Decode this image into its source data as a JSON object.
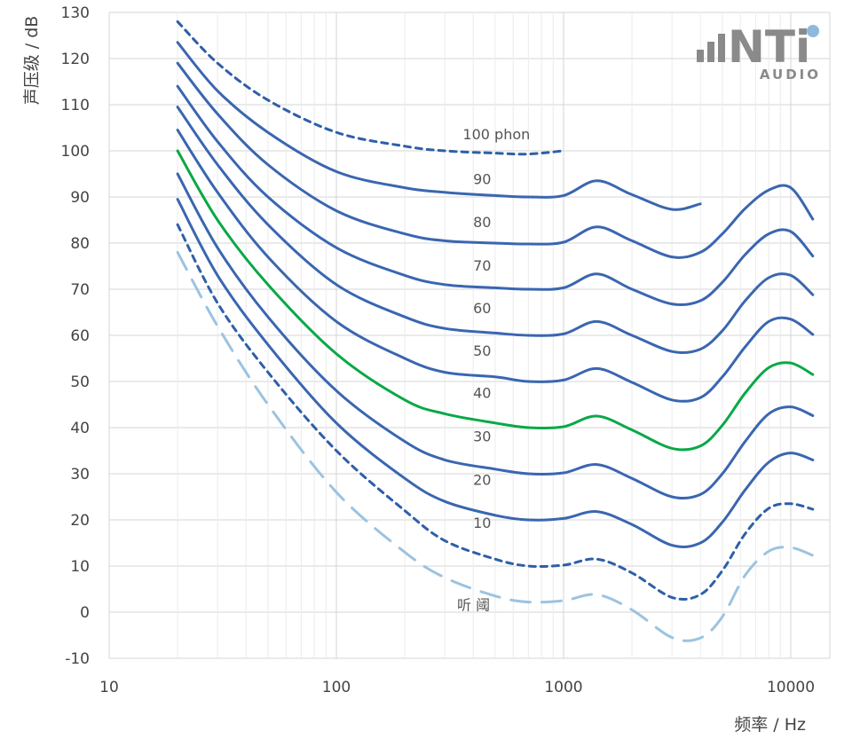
{
  "chart_data": {
    "type": "line",
    "xscale": "log",
    "xlim": [
      10,
      16000
    ],
    "ylim": [
      -10,
      130
    ],
    "grid": true,
    "xlabel": "频率 / Hz",
    "ylabel": "声压级 / dB",
    "x_ticks": [
      "10",
      "100",
      "1000",
      "10000"
    ],
    "y_ticks": [
      "130",
      "120",
      "110",
      "100",
      "90",
      "80",
      "70",
      "60",
      "50",
      "40",
      "30",
      "20",
      "10",
      "0",
      "-10"
    ],
    "series": [
      {
        "name": "听 阈",
        "color": "#9cc3e0",
        "style": "long-dash",
        "x": [
          20,
          30,
          50,
          100,
          200,
          300,
          500,
          700,
          1000,
          1400,
          2000,
          3000,
          4000,
          5000,
          6300,
          8000,
          10000,
          12500
        ],
        "y": [
          78,
          62,
          45,
          26,
          13,
          7.5,
          3.5,
          2.2,
          2.5,
          3.8,
          0.5,
          -5.5,
          -5.6,
          -1,
          8,
          13.2,
          14,
          12.3
        ]
      },
      {
        "name": "10",
        "color": "#2e5fa8",
        "style": "short-dash",
        "x": [
          20,
          30,
          50,
          100,
          200,
          300,
          500,
          700,
          1000,
          1400,
          2000,
          3000,
          4000,
          5000,
          6300,
          8000,
          10000,
          12500
        ],
        "y": [
          84,
          67,
          52,
          35,
          22,
          15.5,
          11.5,
          10,
          10.2,
          11.5,
          8.5,
          3.2,
          3.8,
          9,
          17,
          22.5,
          23.5,
          22.3
        ]
      },
      {
        "name": "20",
        "color": "#3a66b0",
        "style": "solid",
        "x": [
          20,
          30,
          50,
          100,
          200,
          300,
          500,
          700,
          1000,
          1400,
          2000,
          3000,
          4000,
          5000,
          6300,
          8000,
          10000,
          12500
        ],
        "y": [
          89.5,
          73,
          58,
          41,
          29,
          24,
          21,
          20,
          20.3,
          21.8,
          19,
          14.5,
          15,
          19.5,
          26.5,
          32.5,
          34.5,
          33
        ]
      },
      {
        "name": "30",
        "color": "#3a66b0",
        "style": "solid",
        "x": [
          20,
          30,
          50,
          100,
          200,
          300,
          500,
          700,
          1000,
          1400,
          2000,
          3000,
          4000,
          5000,
          6300,
          8000,
          10000,
          12500
        ],
        "y": [
          95,
          79,
          64,
          48,
          37,
          33,
          31,
          30,
          30.2,
          32,
          29,
          25,
          25.5,
          30,
          37,
          43,
          44.5,
          42.6
        ]
      },
      {
        "name": "40",
        "color": "#0aa847",
        "style": "solid",
        "x": [
          20,
          30,
          50,
          100,
          200,
          300,
          500,
          700,
          1000,
          1400,
          2000,
          3000,
          4000,
          5000,
          6300,
          8000,
          10000,
          12500
        ],
        "y": [
          100,
          85,
          71,
          56,
          46,
          43,
          41,
          40,
          40.2,
          42.5,
          39.5,
          35.5,
          36,
          40.5,
          47.5,
          53,
          54,
          51.5
        ]
      },
      {
        "name": "50",
        "color": "#3a66b0",
        "style": "solid",
        "x": [
          20,
          30,
          50,
          100,
          200,
          300,
          500,
          700,
          1000,
          1400,
          2000,
          3000,
          4000,
          5000,
          6300,
          8000,
          10000,
          12500
        ],
        "y": [
          104.5,
          91,
          77,
          63,
          55,
          52,
          51,
          50,
          50.3,
          52.8,
          49.8,
          46,
          46.5,
          51,
          57.5,
          63,
          63.5,
          60.2
        ]
      },
      {
        "name": "60",
        "color": "#3a66b0",
        "style": "solid",
        "x": [
          20,
          30,
          50,
          100,
          200,
          300,
          500,
          700,
          1000,
          1400,
          2000,
          3000,
          4000,
          5000,
          6300,
          8000,
          10000,
          12500
        ],
        "y": [
          109.5,
          97,
          84,
          71,
          64,
          61.5,
          60.5,
          60,
          60.3,
          63,
          60,
          56.5,
          57,
          61,
          67.5,
          72.5,
          73,
          68.8
        ]
      },
      {
        "name": "70",
        "color": "#3a66b0",
        "style": "solid",
        "x": [
          20,
          30,
          50,
          100,
          200,
          300,
          500,
          700,
          1000,
          1400,
          2000,
          3000,
          4000,
          5000,
          6300,
          8000,
          10000,
          12500
        ],
        "y": [
          114,
          102,
          90,
          79,
          73,
          71,
          70.3,
          70,
          70.3,
          73.3,
          70,
          66.8,
          67.5,
          71.5,
          77.5,
          82,
          82.5,
          77.2
        ]
      },
      {
        "name": "80",
        "color": "#3a66b0",
        "style": "solid",
        "x": [
          20,
          30,
          50,
          100,
          200,
          300,
          500,
          700,
          1000,
          1400,
          2000,
          3000,
          4000,
          5000,
          6300,
          8000,
          10000,
          12500
        ],
        "y": [
          119,
          108,
          97,
          87,
          82,
          80.5,
          80,
          79.8,
          80.2,
          83.5,
          80.5,
          77,
          78,
          82,
          87.5,
          91.5,
          92,
          85.2
        ]
      },
      {
        "name": "90",
        "color": "#3a66b0",
        "style": "solid",
        "x": [
          20,
          30,
          50,
          100,
          200,
          300,
          500,
          700,
          1000,
          1400,
          2000,
          3000,
          4000
        ],
        "y": [
          123.5,
          113,
          104,
          95.5,
          92,
          91,
          90.3,
          90,
          90.3,
          93.5,
          90.5,
          87.3,
          88.5
        ]
      },
      {
        "name": "100",
        "color": "#2e5fa8",
        "style": "short-dash",
        "x": [
          20,
          30,
          50,
          100,
          200,
          300,
          500,
          700,
          1000
        ],
        "y": [
          128,
          119,
          111,
          104,
          101,
          100,
          99.5,
          99.3,
          100
        ]
      }
    ],
    "curve_labels": [
      {
        "text": "100  phon",
        "x": 360,
        "y": 102.5
      },
      {
        "text": "90",
        "x": 400,
        "y": 92.8
      },
      {
        "text": "80",
        "x": 400,
        "y": 83.5
      },
      {
        "text": "70",
        "x": 400,
        "y": 74
      },
      {
        "text": "60",
        "x": 400,
        "y": 64.8
      },
      {
        "text": "50",
        "x": 400,
        "y": 55.6
      },
      {
        "text": "40",
        "x": 400,
        "y": 46.4
      },
      {
        "text": "30",
        "x": 400,
        "y": 37
      },
      {
        "text": "20",
        "x": 400,
        "y": 27.6
      },
      {
        "text": "10",
        "x": 400,
        "y": 18.3
      },
      {
        "text": "听 阈",
        "x": 340,
        "y": 0.5
      }
    ]
  },
  "logo": {
    "brand": "NTi",
    "sub": "AUDIO",
    "accent": "#8fb8de"
  }
}
